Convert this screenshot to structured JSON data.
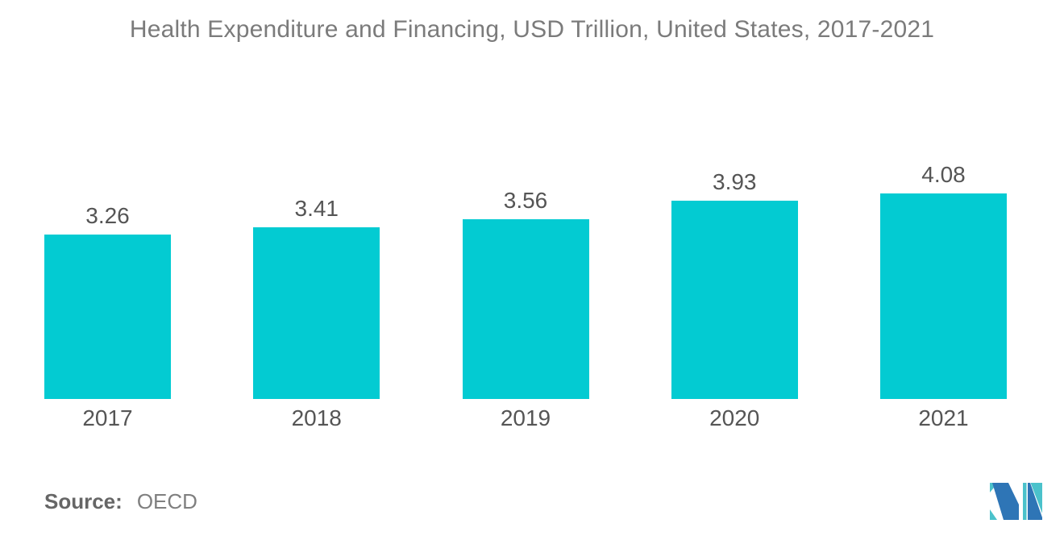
{
  "page": {
    "title": "Health Expenditure and Financing, USD Trillion, United States, 2017-2021"
  },
  "chart_data": {
    "type": "bar",
    "title": "Health Expenditure and Financing, USD Trillion, United States, 2017-2021",
    "categories": [
      "2017",
      "2018",
      "2019",
      "2020",
      "2021"
    ],
    "values": [
      3.26,
      3.41,
      3.56,
      3.93,
      4.08
    ],
    "value_labels": [
      "3.26",
      "3.41",
      "3.56",
      "3.93",
      "4.08"
    ],
    "xlabel": "",
    "ylabel": "",
    "ylim": [
      0,
      4.3
    ],
    "grid": false,
    "legend": false,
    "axes_shown": false,
    "bar_color": "#03CBD2"
  },
  "source": {
    "label": "Source:",
    "value": "OECD"
  },
  "logo": {
    "name": "mordor-intelligence-logo",
    "color_blue": "#2E75B6",
    "color_teal": "#4BC2CB"
  },
  "colors": {
    "background": "#FFFFFF",
    "bar": "#03CBD2",
    "title_text": "#7B7B7B",
    "label_text": "#555555",
    "source_label_text": "#666666",
    "source_value_text": "#7F7F7F"
  }
}
